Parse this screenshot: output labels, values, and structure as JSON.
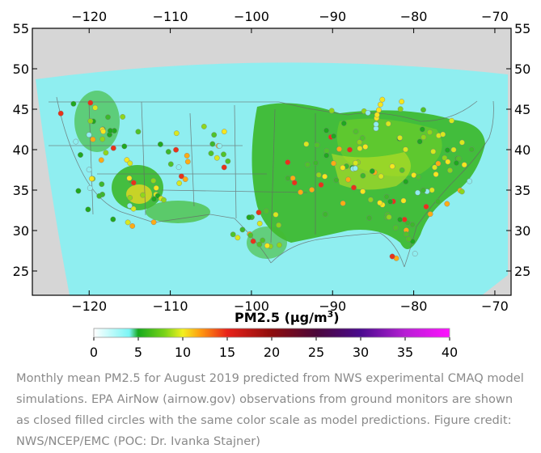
{
  "map": {
    "lon_ticks": [
      "−120",
      "−110",
      "−100",
      "−90",
      "−80",
      "−70"
    ],
    "lat_ticks": [
      "55",
      "50",
      "45",
      "40",
      "35",
      "30",
      "25"
    ],
    "lon_values": [
      -120,
      -110,
      -100,
      -90,
      -80,
      -70
    ],
    "lat_values": [
      55,
      50,
      45,
      40,
      35,
      30,
      25
    ],
    "lon_range": [
      -127,
      -68
    ],
    "lat_range": [
      22,
      55
    ],
    "land_color": "#d6d6d6",
    "domain_color": "#8feef0",
    "high_color": "#3cb82c"
  },
  "colorbar": {
    "title": "PM2.5 (μg/m",
    "title_sup": "3",
    "title_close": ")",
    "ticks": [
      "0",
      "5",
      "10",
      "15",
      "20",
      "25",
      "30",
      "35",
      "40"
    ],
    "values": [
      0,
      5,
      10,
      15,
      20,
      25,
      30,
      35,
      40
    ],
    "stops": [
      {
        "v": 0,
        "c": "#ffffff"
      },
      {
        "v": 4,
        "c": "#7af5f5"
      },
      {
        "v": 5,
        "c": "#16a91d"
      },
      {
        "v": 8,
        "c": "#7bd418"
      },
      {
        "v": 10,
        "c": "#f2f020"
      },
      {
        "v": 12,
        "c": "#ff9a10"
      },
      {
        "v": 15,
        "c": "#e8221a"
      },
      {
        "v": 20,
        "c": "#8e0d0d"
      },
      {
        "v": 25,
        "c": "#4b073a"
      },
      {
        "v": 30,
        "c": "#4a0a8e"
      },
      {
        "v": 35,
        "c": "#b71fd4"
      },
      {
        "v": 40,
        "c": "#ff10ff"
      }
    ]
  },
  "caption": "Monthly mean PM2.5 for August 2019 predicted from NWS experimental CMAQ model simulations. EPA AirNow (airnow.gov) observations from ground monitors are shown as closed filled circles with the same color scale as model predictions. Figure credit: NWS/NCEP/EMC (POC: Dr. Ivanka Stajner)"
}
